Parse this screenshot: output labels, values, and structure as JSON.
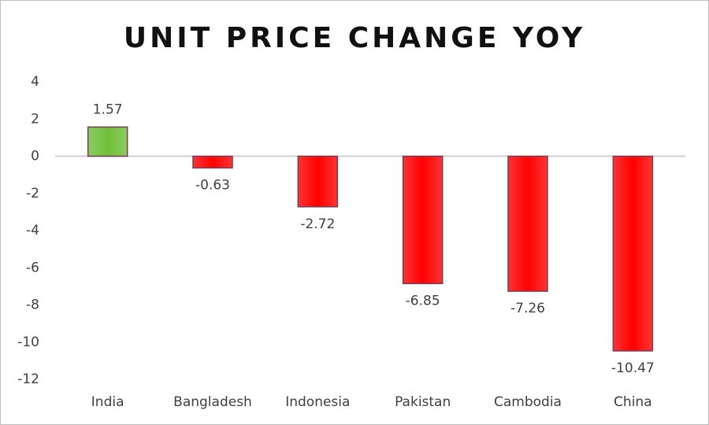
{
  "chart_data": {
    "type": "bar",
    "title": "UNIT PRICE CHANGE YOY",
    "categories": [
      "India",
      "Bangladesh",
      "Indonesia",
      "Pakistan",
      "Cambodia",
      "China"
    ],
    "values": [
      1.57,
      -0.63,
      -2.72,
      -6.85,
      -7.26,
      -10.47
    ],
    "colors": [
      "#6fbf3a",
      "#ff0000",
      "#ff0000",
      "#ff0000",
      "#ff0000",
      "#ff0000"
    ],
    "ylim": [
      -12,
      4
    ],
    "yticks": [
      4,
      2,
      0,
      -2,
      -4,
      -6,
      -8,
      -10,
      -12
    ],
    "grid": false
  }
}
